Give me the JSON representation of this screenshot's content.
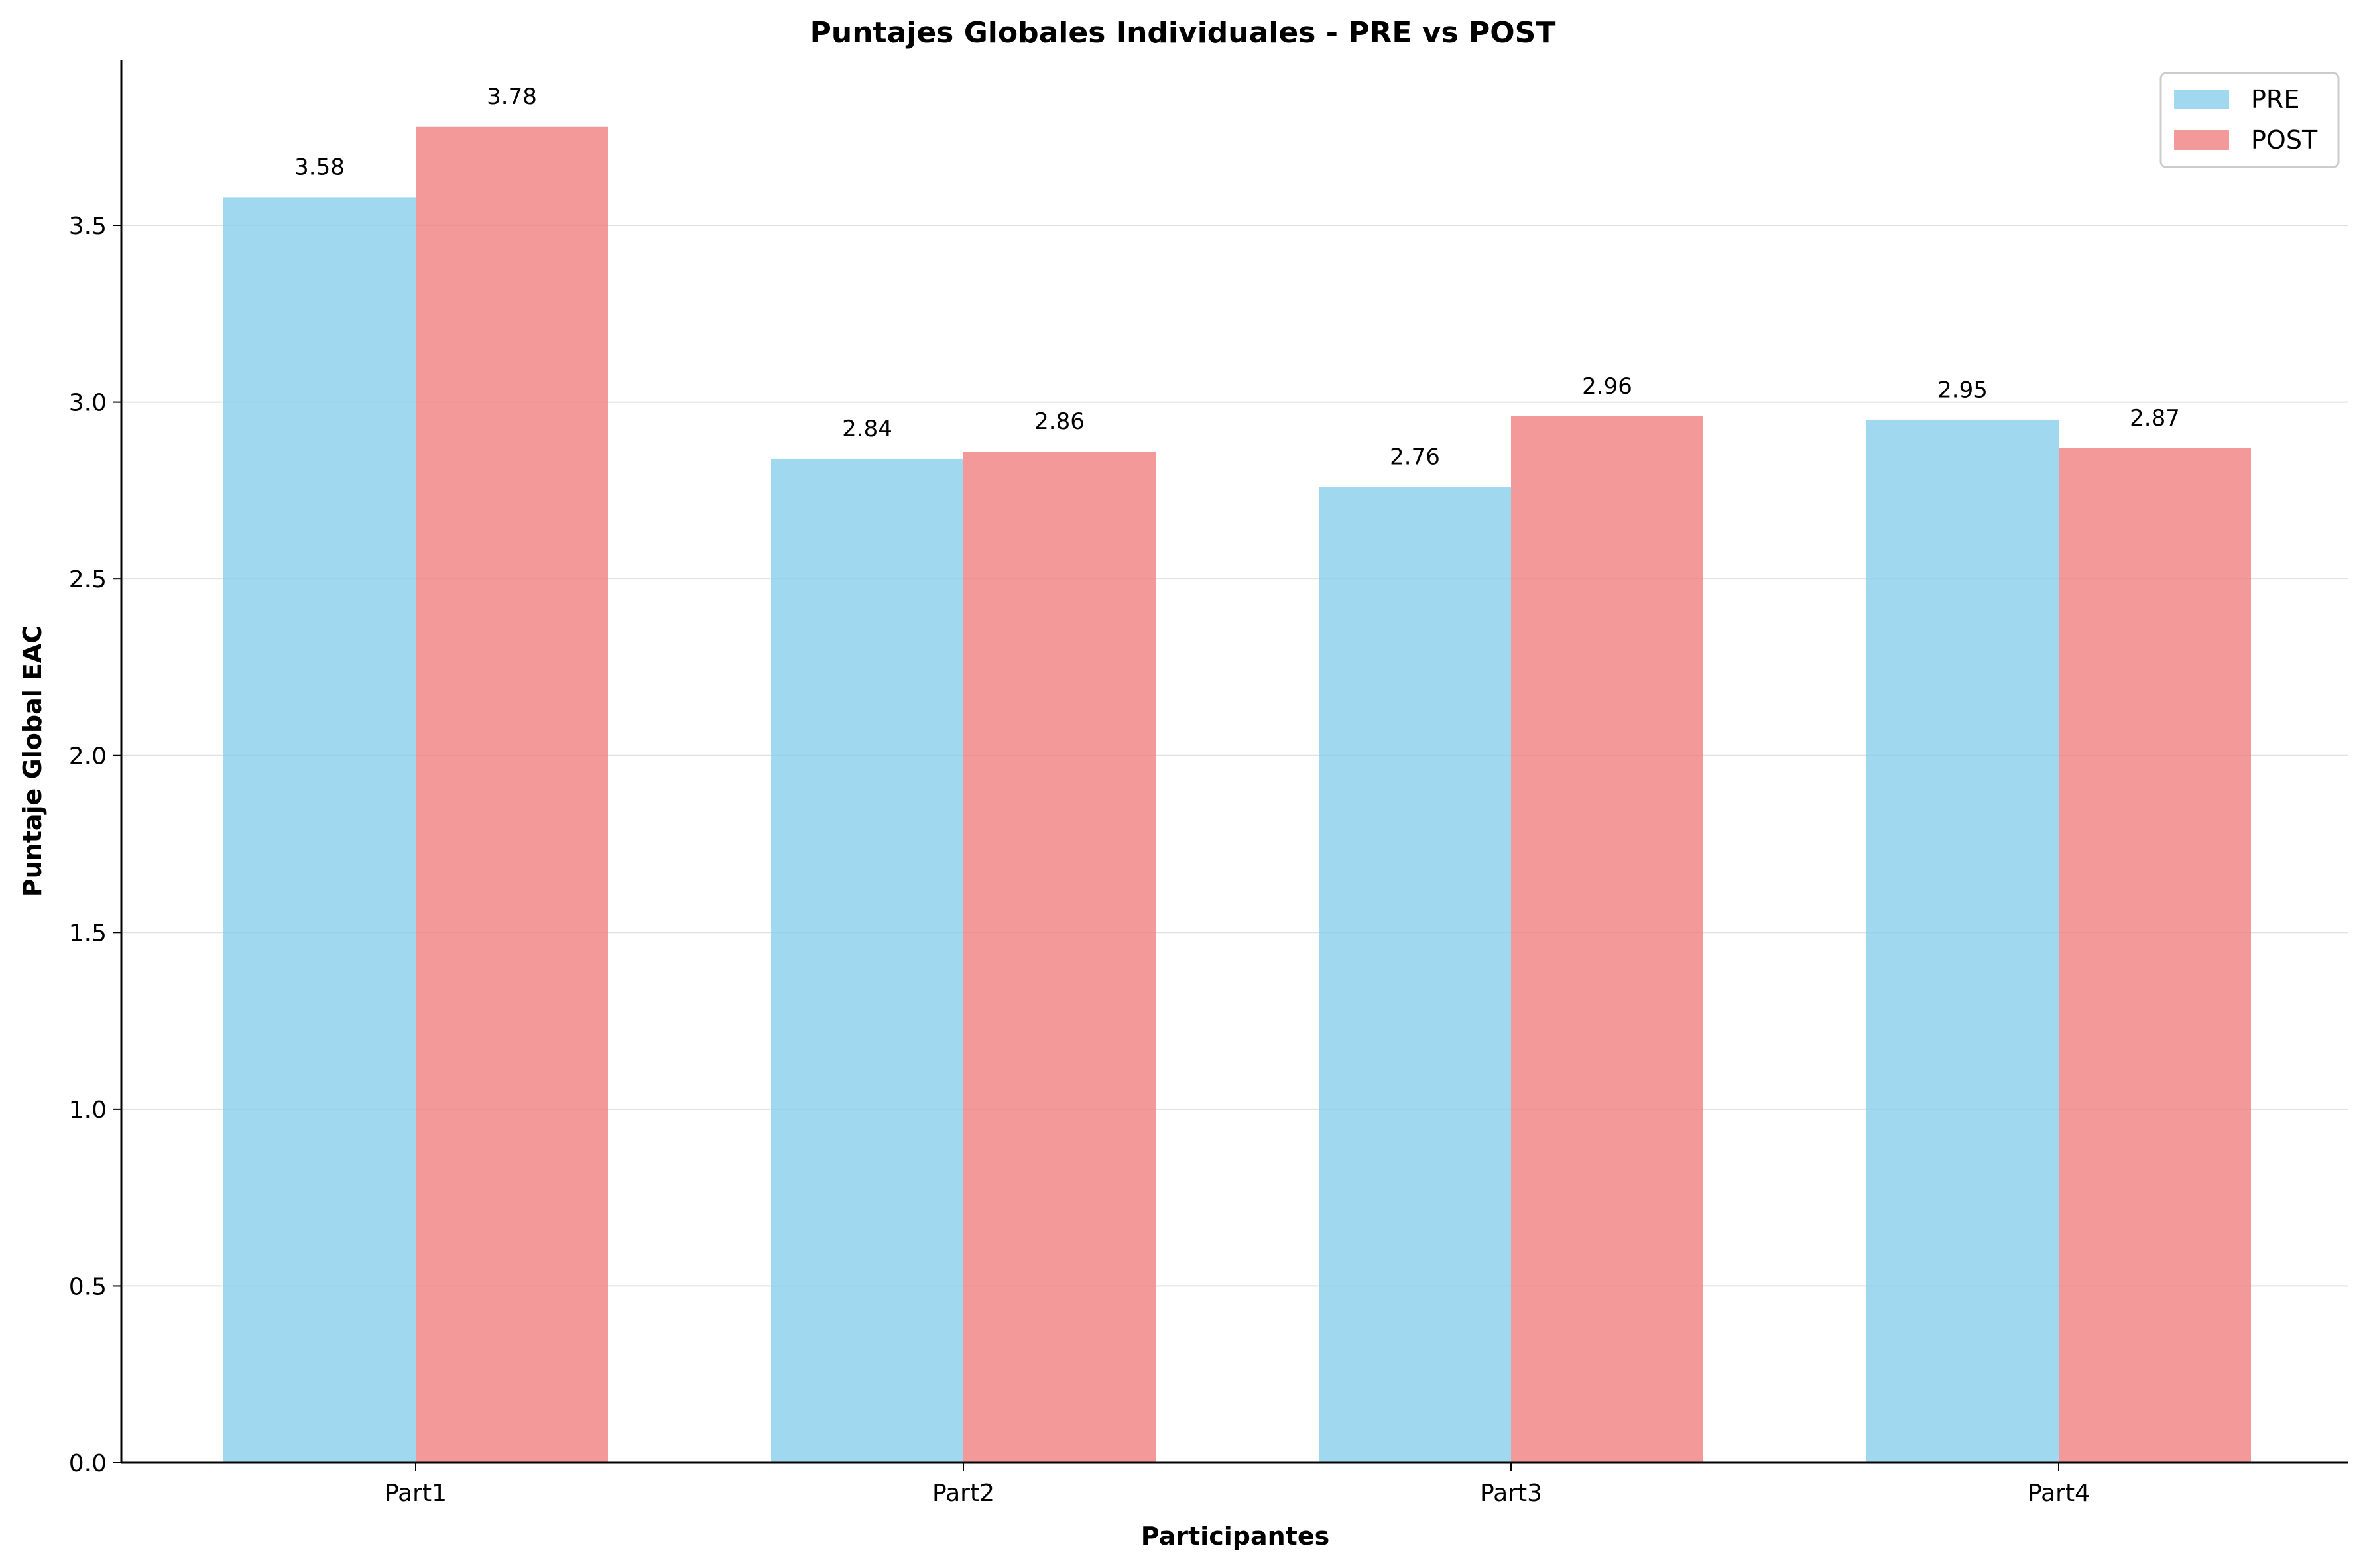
{
  "chart_data": {
    "type": "bar",
    "title": "Puntajes Globales Individuales - PRE vs POST",
    "xlabel": "Participantes",
    "ylabel": "Puntaje Global EAC",
    "categories": [
      "Part1",
      "Part2",
      "Part3",
      "Part4"
    ],
    "series": [
      {
        "name": "PRE",
        "values": [
          3.58,
          2.84,
          2.76,
          2.95
        ],
        "color": "#87CEEB"
      },
      {
        "name": "POST",
        "values": [
          3.78,
          2.86,
          2.96,
          2.87
        ],
        "color": "#F08080"
      }
    ],
    "data_labels": [
      [
        "3.58",
        "2.84",
        "2.76",
        "2.95"
      ],
      [
        "3.78",
        "2.86",
        "2.96",
        "2.87"
      ]
    ],
    "ylim": [
      0,
      3.969
    ],
    "yticks": [
      0.0,
      0.5,
      1.0,
      1.5,
      2.0,
      2.5,
      3.0,
      3.5
    ],
    "ytick_labels": [
      "0.0",
      "0.5",
      "1.0",
      "1.5",
      "2.0",
      "2.5",
      "3.0",
      "3.5"
    ],
    "grid": "y",
    "legend": "top-right"
  }
}
